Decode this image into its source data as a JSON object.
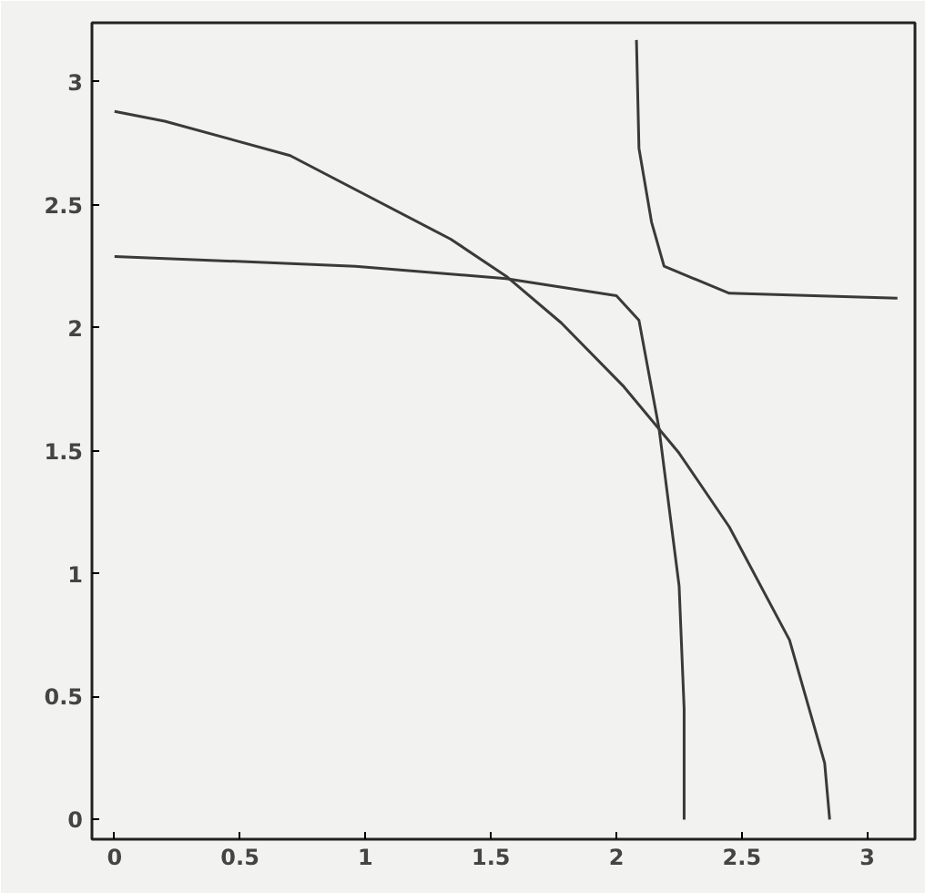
{
  "chart_data": {
    "type": "line",
    "xlim": [
      -0.09,
      3.19
    ],
    "ylim": [
      -0.08,
      3.24
    ],
    "xticks": [
      0,
      {
        "value": 0.5,
        "label": "0.5"
      },
      1,
      {
        "value": 1.5,
        "label": "1.5"
      },
      2,
      {
        "value": 2.5,
        "label": "2.5"
      },
      3
    ],
    "yticks": [
      0,
      {
        "value": 0.5,
        "label": "0.5"
      },
      1,
      {
        "value": 1.5,
        "label": "1.5"
      },
      2,
      {
        "value": 2.5,
        "label": "2.5"
      },
      3
    ],
    "grid": false,
    "marker": "none",
    "line_style": "solid",
    "series": [
      {
        "color": "#3a3a3a",
        "x": [
          0,
          0.2,
          0.7,
          1.34,
          1.56,
          1.78,
          2.03,
          2.25,
          2.45,
          2.69,
          2.83,
          2.85
        ],
        "values": [
          2.88,
          2.84,
          2.7,
          2.36,
          2.21,
          2.02,
          1.76,
          1.49,
          1.19,
          0.73,
          0.23,
          0
        ]
      },
      {
        "color": "#3a3a3a",
        "x": [
          0,
          0.96,
          1.56,
          2.0,
          2.09,
          2.17,
          2.25,
          2.27,
          2.27
        ],
        "values": [
          2.29,
          2.25,
          2.2,
          2.13,
          2.03,
          1.59,
          0.95,
          0.45,
          0
        ]
      },
      {
        "color": "#3a3a3a",
        "x": [
          2.08,
          2.09,
          2.14,
          2.19,
          2.45,
          3.12
        ],
        "values": [
          3.17,
          2.73,
          2.43,
          2.25,
          2.14,
          2.12
        ]
      }
    ]
  }
}
